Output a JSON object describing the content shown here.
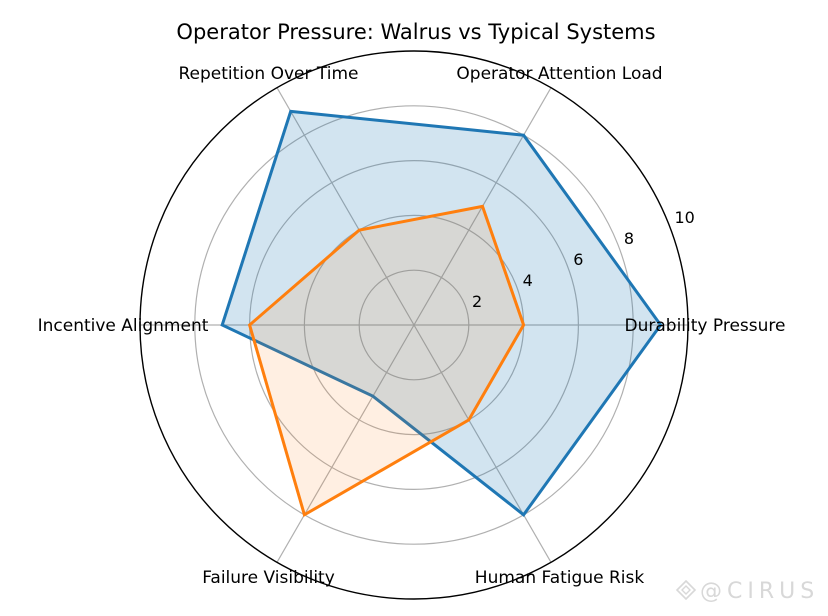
{
  "chart_data": {
    "type": "radar",
    "title": "Operator Pressure: Walrus vs Typical Systems",
    "axes": [
      "Durability Pressure",
      "Operator Attention Load",
      "Repetition Over Time",
      "Incentive Alignment",
      "Failure Visibility",
      "Human Fatigue Risk"
    ],
    "rlim": [
      0,
      10
    ],
    "r_ticks": [
      2,
      4,
      6,
      8,
      10
    ],
    "grid": true,
    "series": [
      {
        "values": [
          9,
          8,
          9,
          7,
          3,
          8
        ],
        "color": "#1f77b4",
        "fill_opacity": 0.2
      },
      {
        "values": [
          4,
          5,
          4,
          6,
          8,
          4
        ],
        "color": "#ff7f0e",
        "fill_opacity": 0.12
      }
    ]
  },
  "watermark": {
    "text": "@CIRUS"
  }
}
